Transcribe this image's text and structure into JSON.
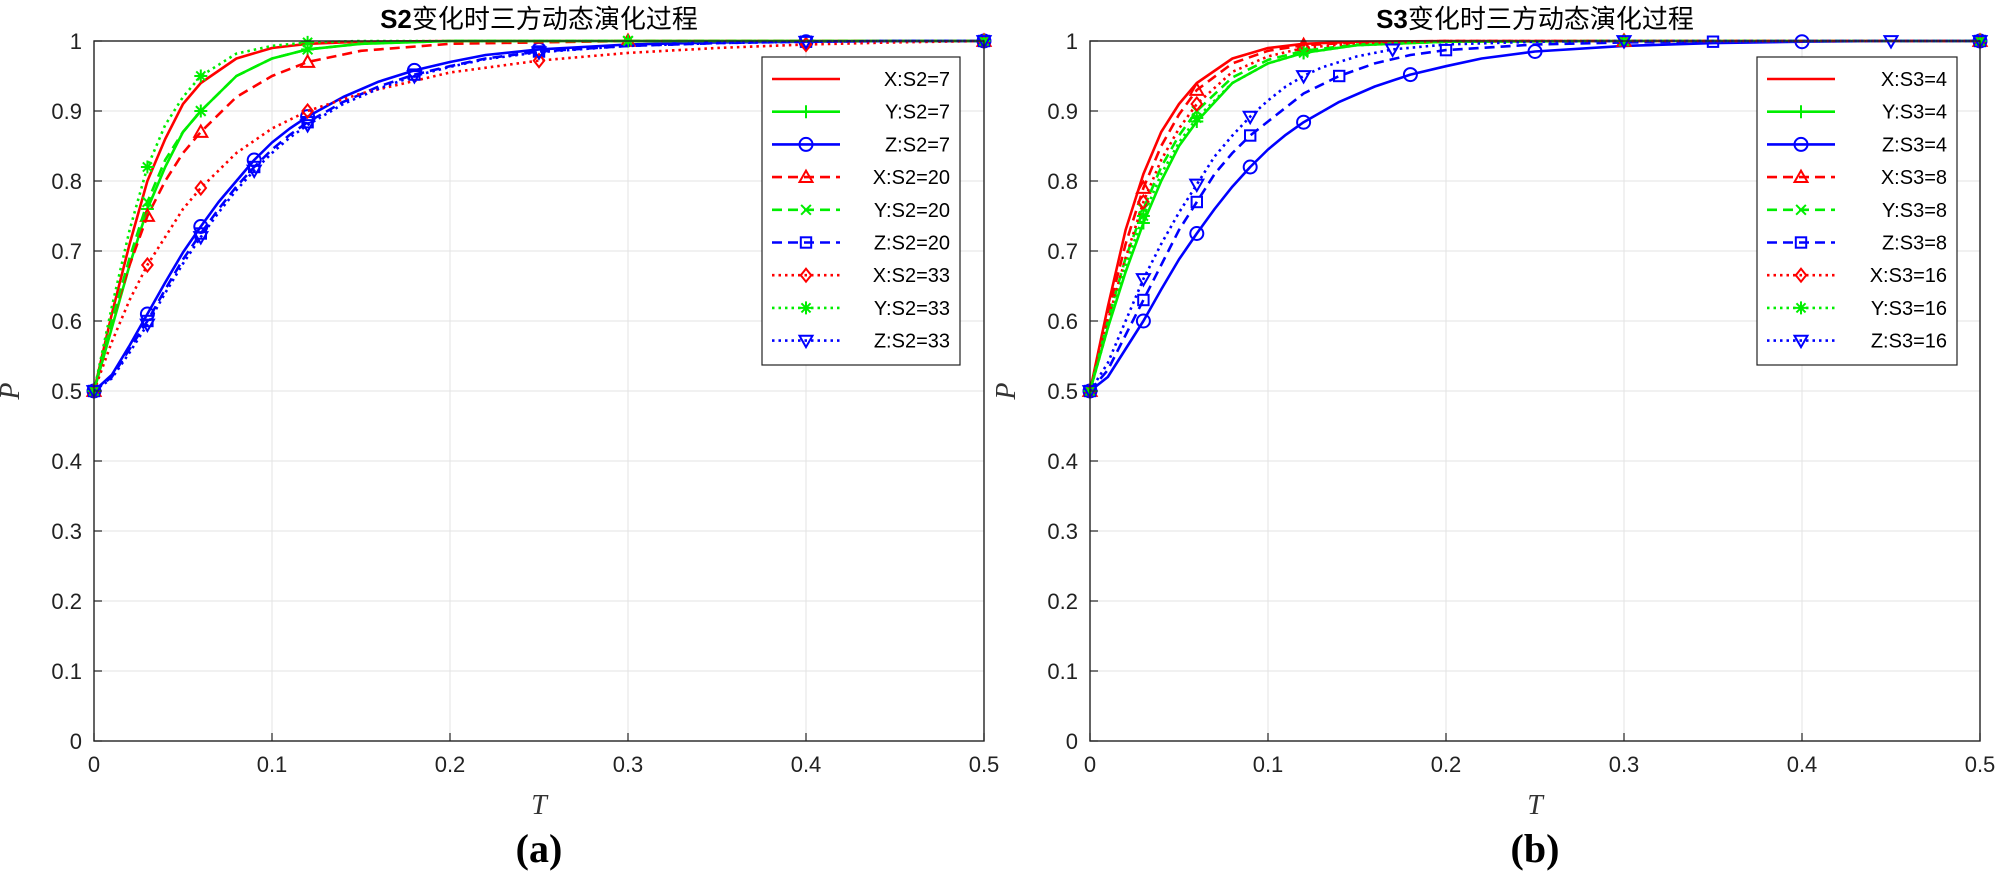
{
  "chart_data": [
    {
      "type": "line",
      "panel_label": "(a)",
      "title_bold": "S2",
      "title_rest": "变化时三方动态演化过程",
      "xlabel": "T",
      "ylabel": "P",
      "xlim": [
        0,
        0.5
      ],
      "ylim": [
        0,
        1
      ],
      "xticks": [
        0,
        0.1,
        0.2,
        0.3,
        0.4,
        0.5
      ],
      "yticks": [
        0,
        0.1,
        0.2,
        0.3,
        0.4,
        0.5,
        0.6,
        0.7,
        0.8,
        0.9,
        1
      ],
      "xtick_labels": [
        "0",
        "0.1",
        "0.2",
        "0.3",
        "0.4",
        "0.5"
      ],
      "ytick_labels": [
        "0",
        "0.1",
        "0.2",
        "0.3",
        "0.4",
        "0.5",
        "0.6",
        "0.7",
        "0.8",
        "0.9",
        "1"
      ],
      "grid": true,
      "legend_position": "top-right",
      "series": [
        {
          "name": "X:S2=7",
          "color": "#ff0000",
          "dash": "solid",
          "marker": "none",
          "x": [
            0,
            0.01,
            0.02,
            0.03,
            0.04,
            0.05,
            0.06,
            0.08,
            0.1,
            0.12,
            0.15,
            0.2,
            0.3,
            0.4,
            0.5
          ],
          "y": [
            0.5,
            0.61,
            0.71,
            0.8,
            0.86,
            0.91,
            0.94,
            0.975,
            0.99,
            0.996,
            0.999,
            1,
            1,
            1,
            1
          ]
        },
        {
          "name": "Y:S2=7",
          "color": "#00ee00",
          "dash": "solid",
          "marker": "plus",
          "x": [
            0,
            0.01,
            0.02,
            0.03,
            0.04,
            0.05,
            0.06,
            0.08,
            0.1,
            0.12,
            0.15,
            0.2,
            0.3,
            0.4,
            0.5
          ],
          "y": [
            0.5,
            0.59,
            0.68,
            0.76,
            0.82,
            0.87,
            0.9,
            0.95,
            0.975,
            0.988,
            0.996,
            1,
            1,
            1,
            1
          ]
        },
        {
          "name": "Z:S2=7",
          "color": "#0000ff",
          "dash": "solid",
          "marker": "circle",
          "x": [
            0,
            0.01,
            0.02,
            0.03,
            0.04,
            0.05,
            0.06,
            0.07,
            0.08,
            0.09,
            0.1,
            0.11,
            0.12,
            0.14,
            0.16,
            0.18,
            0.2,
            0.22,
            0.25,
            0.3,
            0.35,
            0.4,
            0.45,
            0.5
          ],
          "y": [
            0.5,
            0.523,
            0.565,
            0.61,
            0.655,
            0.698,
            0.735,
            0.77,
            0.8,
            0.83,
            0.855,
            0.875,
            0.892,
            0.92,
            0.942,
            0.958,
            0.97,
            0.98,
            0.988,
            0.995,
            0.998,
            0.999,
            1,
            1
          ]
        },
        {
          "name": "X:S2=20",
          "color": "#ff0000",
          "dash": "dashed",
          "marker": "triangle-up",
          "x": [
            0,
            0.01,
            0.02,
            0.03,
            0.04,
            0.05,
            0.06,
            0.08,
            0.1,
            0.12,
            0.15,
            0.2,
            0.3,
            0.4,
            0.5
          ],
          "y": [
            0.5,
            0.6,
            0.68,
            0.75,
            0.8,
            0.84,
            0.87,
            0.92,
            0.95,
            0.97,
            0.986,
            0.996,
            1,
            1,
            1
          ]
        },
        {
          "name": "Y:S2=20",
          "color": "#00ee00",
          "dash": "dashed",
          "marker": "x",
          "x": [
            0,
            0.01,
            0.02,
            0.03,
            0.04,
            0.05,
            0.06,
            0.08,
            0.1,
            0.12,
            0.15,
            0.2,
            0.3,
            0.4,
            0.5
          ],
          "y": [
            0.5,
            0.6,
            0.69,
            0.77,
            0.83,
            0.87,
            0.9,
            0.95,
            0.975,
            0.988,
            0.996,
            1,
            1,
            1,
            1
          ]
        },
        {
          "name": "Z:S2=20",
          "color": "#0000ff",
          "dash": "dashed",
          "marker": "square",
          "x": [
            0,
            0.01,
            0.02,
            0.03,
            0.04,
            0.05,
            0.06,
            0.07,
            0.08,
            0.09,
            0.1,
            0.11,
            0.12,
            0.14,
            0.16,
            0.18,
            0.2,
            0.22,
            0.25,
            0.3,
            0.35,
            0.4,
            0.45,
            0.5
          ],
          "y": [
            0.5,
            0.52,
            0.56,
            0.6,
            0.645,
            0.688,
            0.725,
            0.76,
            0.792,
            0.82,
            0.845,
            0.866,
            0.884,
            0.913,
            0.935,
            0.952,
            0.964,
            0.975,
            0.985,
            0.993,
            0.997,
            0.999,
            1,
            1
          ]
        },
        {
          "name": "X:S2=33",
          "color": "#ff0000",
          "dash": "dotted",
          "marker": "diamond",
          "x": [
            0,
            0.01,
            0.02,
            0.03,
            0.04,
            0.05,
            0.06,
            0.08,
            0.1,
            0.12,
            0.15,
            0.2,
            0.25,
            0.3,
            0.35,
            0.4,
            0.45,
            0.5
          ],
          "y": [
            0.5,
            0.57,
            0.63,
            0.68,
            0.72,
            0.76,
            0.79,
            0.84,
            0.875,
            0.9,
            0.925,
            0.955,
            0.972,
            0.983,
            0.99,
            0.995,
            0.998,
            1
          ]
        },
        {
          "name": "Y:S2=33",
          "color": "#00ee00",
          "dash": "dotted",
          "marker": "star",
          "x": [
            0,
            0.01,
            0.02,
            0.03,
            0.04,
            0.05,
            0.06,
            0.08,
            0.1,
            0.12,
            0.15,
            0.2,
            0.3,
            0.4,
            0.5
          ],
          "y": [
            0.5,
            0.62,
            0.73,
            0.82,
            0.88,
            0.92,
            0.95,
            0.982,
            0.993,
            0.998,
            1,
            1,
            1,
            1,
            1
          ]
        },
        {
          "name": "Z:S2=33",
          "color": "#0000ff",
          "dash": "dotted",
          "marker": "triangle-down",
          "x": [
            0,
            0.01,
            0.02,
            0.03,
            0.04,
            0.05,
            0.06,
            0.07,
            0.08,
            0.09,
            0.1,
            0.11,
            0.12,
            0.14,
            0.16,
            0.18,
            0.2,
            0.22,
            0.25,
            0.3,
            0.35,
            0.4,
            0.45,
            0.5
          ],
          "y": [
            0.5,
            0.518,
            0.555,
            0.595,
            0.64,
            0.682,
            0.72,
            0.755,
            0.787,
            0.815,
            0.84,
            0.862,
            0.88,
            0.91,
            0.932,
            0.95,
            0.963,
            0.974,
            0.984,
            0.993,
            0.997,
            0.999,
            1,
            1
          ]
        }
      ]
    },
    {
      "type": "line",
      "panel_label": "(b)",
      "title_bold": "S3",
      "title_rest": "变化时三方动态演化过程",
      "xlabel": "T",
      "ylabel": "P",
      "xlim": [
        0,
        0.5
      ],
      "ylim": [
        0,
        1
      ],
      "xticks": [
        0,
        0.1,
        0.2,
        0.3,
        0.4,
        0.5
      ],
      "yticks": [
        0,
        0.1,
        0.2,
        0.3,
        0.4,
        0.5,
        0.6,
        0.7,
        0.8,
        0.9,
        1
      ],
      "xtick_labels": [
        "0",
        "0.1",
        "0.2",
        "0.3",
        "0.4",
        "0.5"
      ],
      "ytick_labels": [
        "0",
        "0.1",
        "0.2",
        "0.3",
        "0.4",
        "0.5",
        "0.6",
        "0.7",
        "0.8",
        "0.9",
        "1"
      ],
      "grid": true,
      "legend_position": "top-right",
      "series": [
        {
          "name": "X:S3=4",
          "color": "#ff0000",
          "dash": "solid",
          "marker": "none",
          "x": [
            0,
            0.01,
            0.02,
            0.03,
            0.04,
            0.05,
            0.06,
            0.08,
            0.1,
            0.12,
            0.15,
            0.2,
            0.3,
            0.4,
            0.5
          ],
          "y": [
            0.5,
            0.62,
            0.73,
            0.81,
            0.87,
            0.91,
            0.94,
            0.975,
            0.99,
            0.996,
            0.999,
            1,
            1,
            1,
            1
          ]
        },
        {
          "name": "Y:S3=4",
          "color": "#00ee00",
          "dash": "solid",
          "marker": "plus",
          "x": [
            0,
            0.01,
            0.02,
            0.03,
            0.04,
            0.05,
            0.06,
            0.08,
            0.1,
            0.12,
            0.15,
            0.2,
            0.3,
            0.4,
            0.5
          ],
          "y": [
            0.5,
            0.59,
            0.67,
            0.74,
            0.8,
            0.85,
            0.885,
            0.94,
            0.968,
            0.983,
            0.994,
            0.999,
            1,
            1,
            1
          ]
        },
        {
          "name": "Z:S3=4",
          "color": "#0000ff",
          "dash": "solid",
          "marker": "circle",
          "x": [
            0,
            0.01,
            0.02,
            0.03,
            0.04,
            0.05,
            0.06,
            0.07,
            0.08,
            0.09,
            0.1,
            0.11,
            0.12,
            0.14,
            0.16,
            0.18,
            0.2,
            0.22,
            0.25,
            0.3,
            0.35,
            0.4,
            0.45,
            0.5
          ],
          "y": [
            0.5,
            0.52,
            0.56,
            0.6,
            0.645,
            0.688,
            0.725,
            0.76,
            0.792,
            0.82,
            0.845,
            0.866,
            0.884,
            0.913,
            0.935,
            0.952,
            0.964,
            0.975,
            0.985,
            0.993,
            0.997,
            0.999,
            1,
            1
          ]
        },
        {
          "name": "X:S3=8",
          "color": "#ff0000",
          "dash": "dashed",
          "marker": "triangle-up",
          "x": [
            0,
            0.01,
            0.02,
            0.03,
            0.04,
            0.05,
            0.06,
            0.08,
            0.1,
            0.12,
            0.15,
            0.2,
            0.3,
            0.4,
            0.5
          ],
          "y": [
            0.5,
            0.61,
            0.71,
            0.79,
            0.85,
            0.895,
            0.93,
            0.968,
            0.986,
            0.994,
            0.998,
            1,
            1,
            1,
            1
          ]
        },
        {
          "name": "Y:S3=8",
          "color": "#00ee00",
          "dash": "dashed",
          "marker": "x",
          "x": [
            0,
            0.01,
            0.02,
            0.03,
            0.04,
            0.05,
            0.06,
            0.08,
            0.1,
            0.12,
            0.15,
            0.2,
            0.3,
            0.4,
            0.5
          ],
          "y": [
            0.5,
            0.6,
            0.69,
            0.76,
            0.82,
            0.865,
            0.9,
            0.948,
            0.973,
            0.986,
            0.995,
            0.999,
            1,
            1,
            1
          ]
        },
        {
          "name": "Z:S3=8",
          "color": "#0000ff",
          "dash": "dashed",
          "marker": "square",
          "x": [
            0,
            0.01,
            0.02,
            0.03,
            0.04,
            0.05,
            0.06,
            0.07,
            0.08,
            0.09,
            0.1,
            0.12,
            0.14,
            0.16,
            0.18,
            0.2,
            0.25,
            0.3,
            0.35,
            0.4,
            0.45,
            0.5
          ],
          "y": [
            0.5,
            0.53,
            0.58,
            0.63,
            0.68,
            0.73,
            0.77,
            0.81,
            0.84,
            0.865,
            0.885,
            0.925,
            0.95,
            0.968,
            0.98,
            0.987,
            0.995,
            0.998,
            0.999,
            1,
            1,
            1
          ]
        },
        {
          "name": "X:S3=16",
          "color": "#ff0000",
          "dash": "dotted",
          "marker": "diamond",
          "x": [
            0,
            0.01,
            0.02,
            0.03,
            0.04,
            0.05,
            0.06,
            0.08,
            0.1,
            0.12,
            0.15,
            0.2,
            0.3,
            0.4,
            0.5
          ],
          "y": [
            0.5,
            0.6,
            0.69,
            0.77,
            0.83,
            0.875,
            0.91,
            0.956,
            0.978,
            0.99,
            0.997,
            1,
            1,
            1,
            1
          ]
        },
        {
          "name": "Y:S3=16",
          "color": "#00ee00",
          "dash": "dotted",
          "marker": "star",
          "x": [
            0,
            0.01,
            0.02,
            0.03,
            0.04,
            0.05,
            0.06,
            0.08,
            0.1,
            0.12,
            0.15,
            0.2,
            0.3,
            0.4,
            0.5
          ],
          "y": [
            0.5,
            0.59,
            0.68,
            0.75,
            0.81,
            0.855,
            0.89,
            0.94,
            0.968,
            0.983,
            0.994,
            0.999,
            1,
            1,
            1
          ]
        },
        {
          "name": "Z:S3=16",
          "color": "#0000ff",
          "dash": "dotted",
          "marker": "triangle-down",
          "x": [
            0,
            0.01,
            0.02,
            0.03,
            0.04,
            0.05,
            0.06,
            0.07,
            0.08,
            0.09,
            0.1,
            0.11,
            0.12,
            0.13,
            0.15,
            0.17,
            0.2,
            0.25,
            0.3,
            0.35,
            0.4,
            0.45,
            0.5
          ],
          "y": [
            0.5,
            0.54,
            0.6,
            0.66,
            0.71,
            0.755,
            0.795,
            0.835,
            0.865,
            0.892,
            0.915,
            0.935,
            0.95,
            0.962,
            0.978,
            0.988,
            0.995,
            0.999,
            1,
            1,
            1,
            1,
            1
          ]
        }
      ]
    }
  ]
}
